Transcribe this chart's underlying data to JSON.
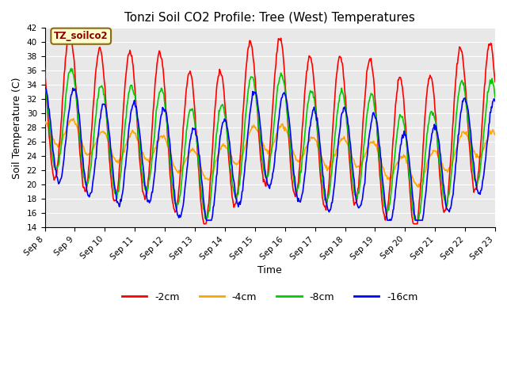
{
  "title": "Tonzi Soil CO2 Profile: Tree (West) Temperatures",
  "xlabel": "Time",
  "ylabel": "Soil Temperature (C)",
  "ylim": [
    14,
    42
  ],
  "yticks": [
    14,
    16,
    18,
    20,
    22,
    24,
    26,
    28,
    30,
    32,
    34,
    36,
    38,
    40,
    42
  ],
  "start_day": 8,
  "end_day": 23,
  "n_days": 15,
  "points_per_day": 48,
  "colors": {
    "-2cm": "#ff0000",
    "-4cm": "#ffa500",
    "-8cm": "#00cc00",
    "-16cm": "#0000ff"
  },
  "legend_label": "TZ_soilco2",
  "ax_bg_color": "#e8e8e8",
  "grid_color": "#ffffff",
  "tick_label_rotation": 45,
  "tick_fontsize": 7.5,
  "label_fontsize": 9,
  "title_fontsize": 11
}
